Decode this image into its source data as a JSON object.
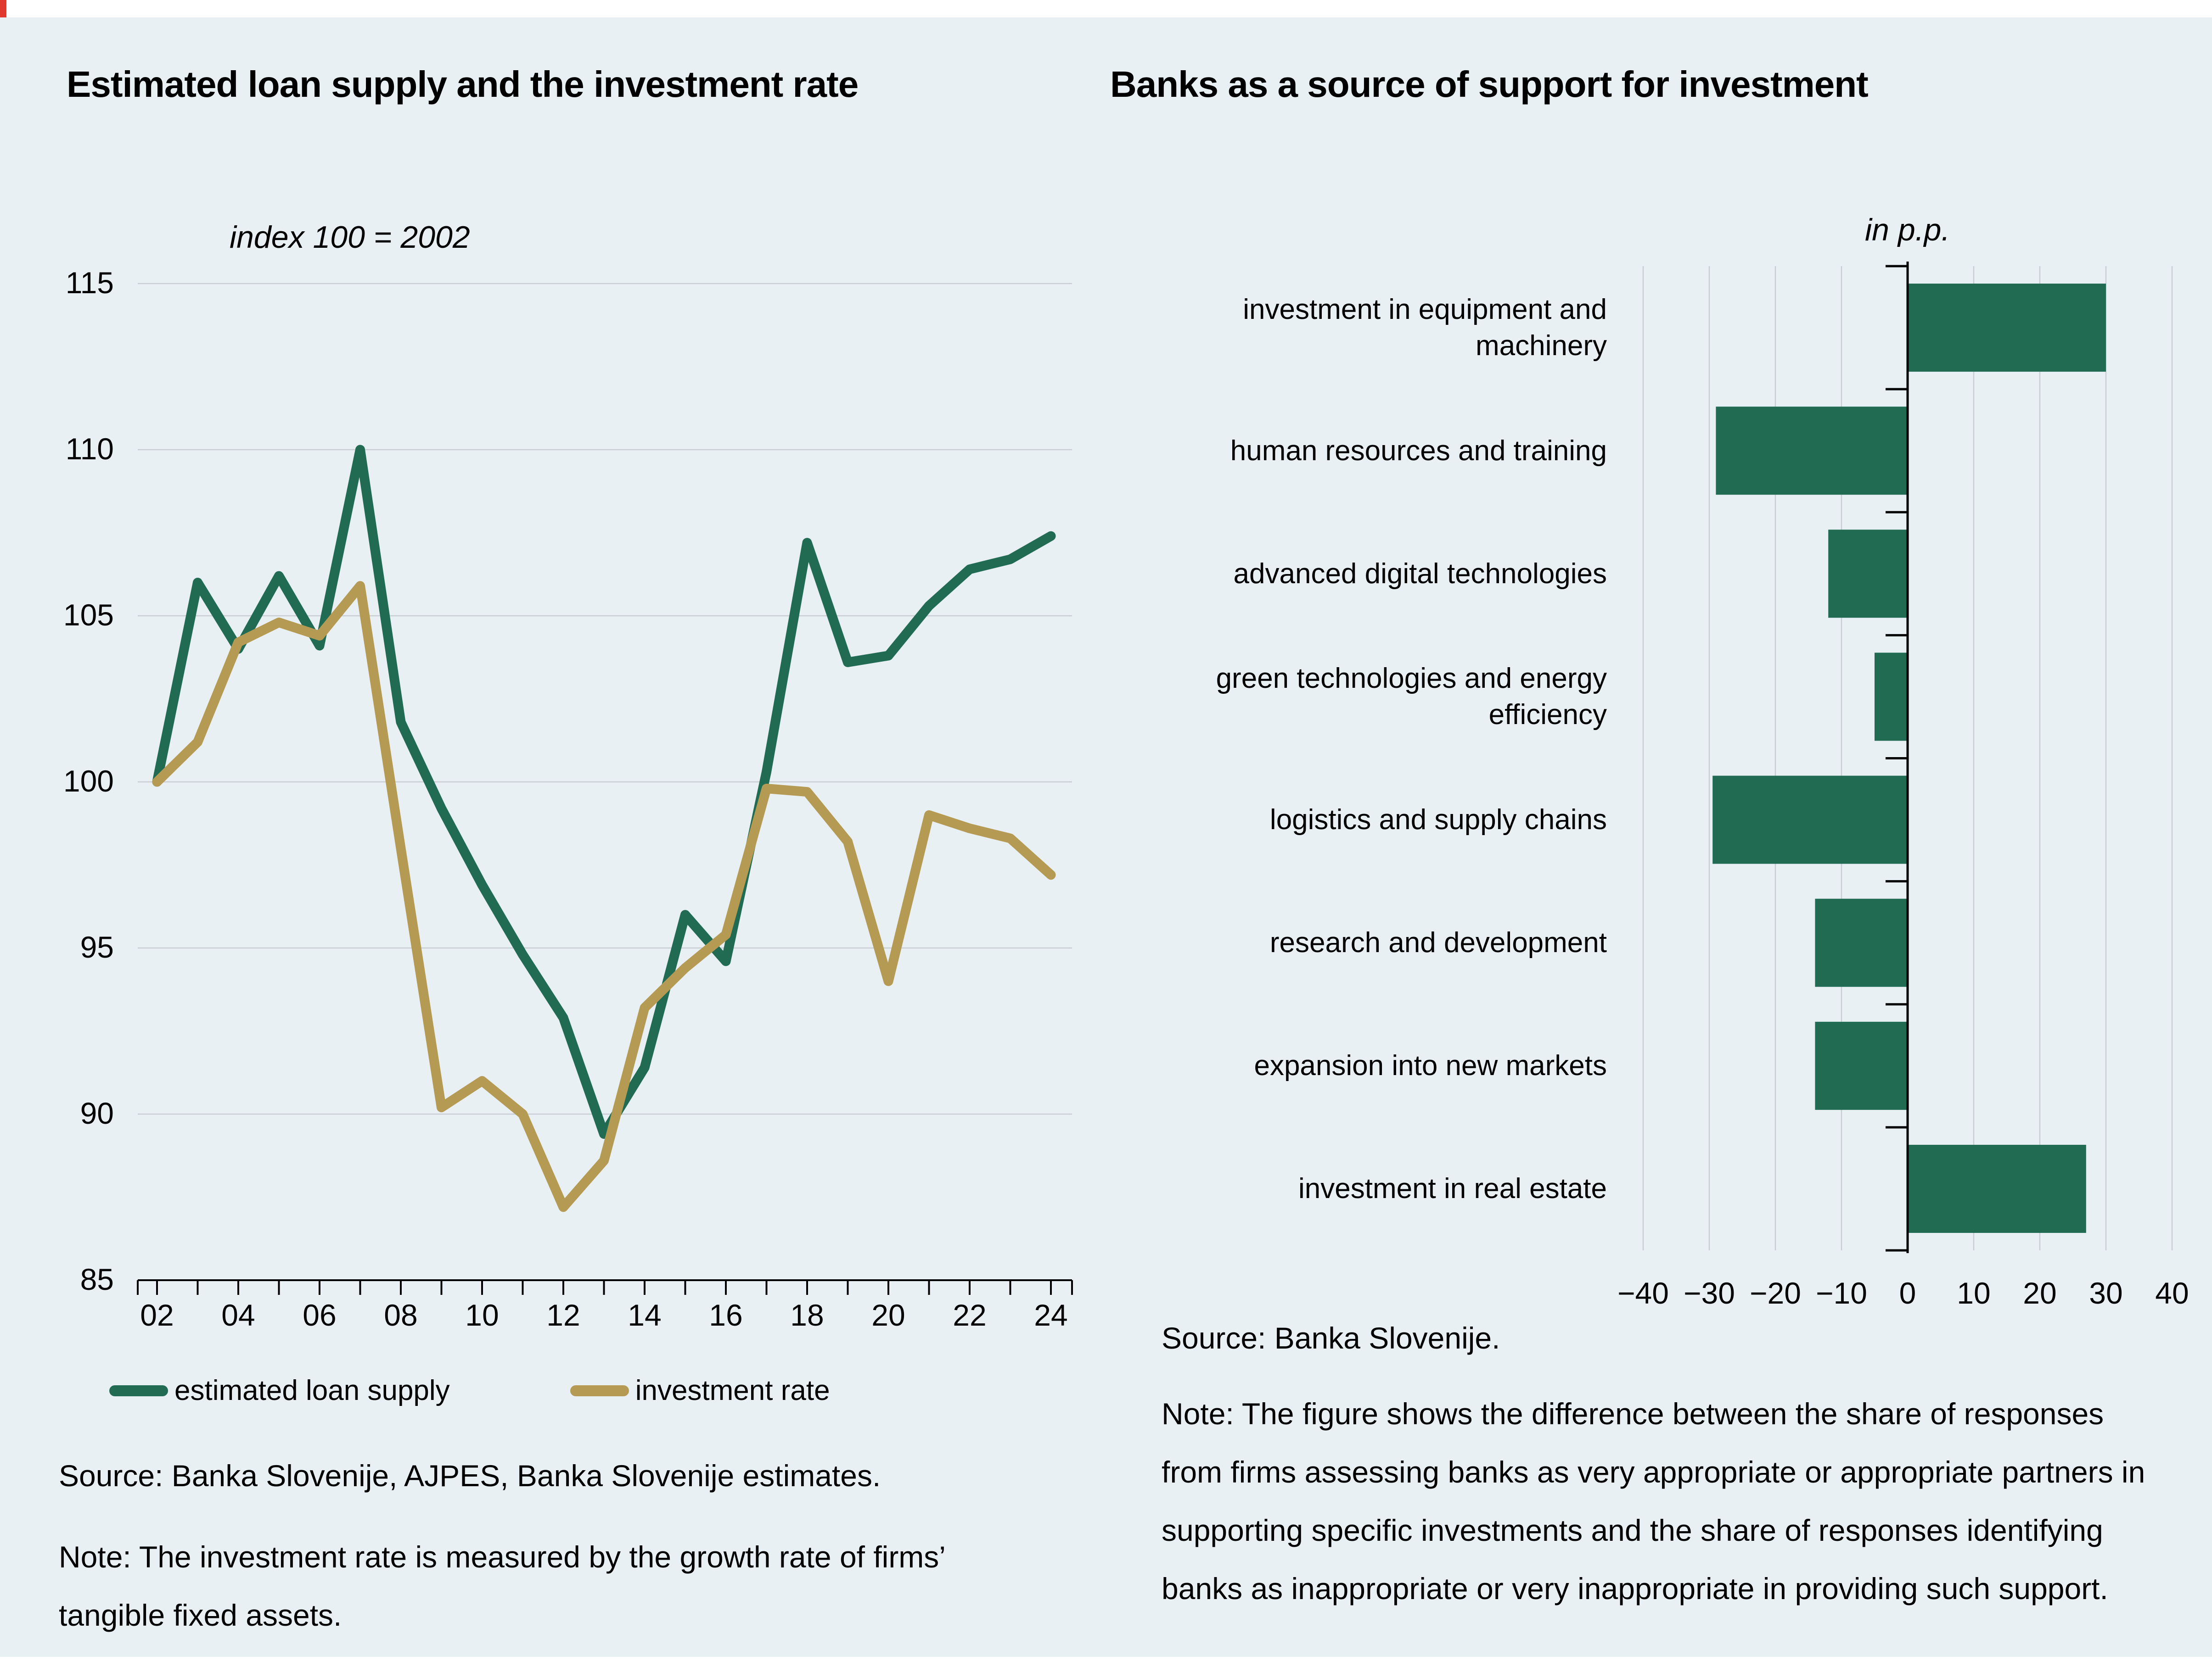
{
  "left_chart": {
    "title": "Estimated loan supply and the investment rate",
    "subtitle": "index 100 = 2002",
    "legend": [
      {
        "label": "estimated loan supply"
      },
      {
        "label": "investment rate"
      }
    ],
    "source": "Source: Banka Slovenije, AJPES, Banka Slovenije estimates.",
    "note": "Note: The investment rate is measured by the growth rate of firms’ tangible fixed assets."
  },
  "right_chart": {
    "title": "Banks as a source of support for investment",
    "unit_label": "in p.p.",
    "source": "Source: Banka Slovenije.",
    "note": "Note: The figure shows the difference between the share of responses from firms assessing banks as very appropriate or appropriate partners in supporting specific investments and the share of responses identifying banks as inappropriate or very inappropriate in providing such support."
  },
  "colors": {
    "background": "#e9f0f4",
    "grid": "#c7cdd2",
    "axis": "#000000",
    "green": "#216b53",
    "tan": "#b49a52"
  },
  "chart_data": [
    {
      "type": "line",
      "title": "Estimated loan supply and the investment rate",
      "subtitle": "index 100 = 2002",
      "x": [
        2002,
        2003,
        2004,
        2005,
        2006,
        2007,
        2008,
        2009,
        2010,
        2011,
        2012,
        2013,
        2014,
        2015,
        2016,
        2017,
        2018,
        2019,
        2020,
        2021,
        2022,
        2023,
        2024
      ],
      "x_tick_labels": [
        "02",
        "04",
        "06",
        "08",
        "10",
        "12",
        "14",
        "16",
        "18",
        "20",
        "22",
        "24"
      ],
      "series": [
        {
          "name": "estimated loan supply",
          "color": "#216b53",
          "values": [
            100,
            106,
            104,
            106.2,
            104.1,
            110,
            101.8,
            99.2,
            96.9,
            94.8,
            92.9,
            89.4,
            91.4,
            96,
            94.6,
            100.3,
            107.2,
            103.6,
            103.8,
            105.3,
            106.4,
            106.7,
            107.4
          ]
        },
        {
          "name": "investment rate",
          "color": "#b49a52",
          "values": [
            100,
            101.2,
            104.2,
            104.8,
            104.4,
            105.9,
            98,
            90.2,
            91,
            90,
            87.2,
            88.6,
            93.2,
            94.4,
            95.4,
            99.8,
            99.7,
            98.2,
            94,
            99,
            98.6,
            98.3,
            97.2
          ]
        }
      ],
      "ylim": [
        85,
        115
      ],
      "y_ticks": [
        85,
        90,
        95,
        100,
        105,
        110,
        115
      ],
      "grid": "horizontal",
      "legend_position": "bottom"
    },
    {
      "type": "bar",
      "orientation": "horizontal",
      "title": "Banks as a source of support for investment",
      "unit": "in p.p.",
      "categories": [
        "investment in equipment and machinery",
        "human resources and training",
        "advanced digital technologies",
        "green technologies and energy efficiency",
        "logistics and supply chains",
        "research and development",
        "expansion into new markets",
        "investment in real estate"
      ],
      "values": [
        30,
        -29,
        -12,
        -5,
        -29.5,
        -14,
        -14,
        27
      ],
      "bar_color": "#216b53",
      "xlim": [
        -41,
        43
      ],
      "x_ticks": [
        -40,
        -30,
        -20,
        -10,
        0,
        10,
        20,
        30,
        40
      ],
      "x_tick_labels": [
        "−40",
        "−30",
        "−20",
        "−10",
        "0",
        "10",
        "20",
        "30",
        "40"
      ],
      "grid": "vertical"
    }
  ]
}
